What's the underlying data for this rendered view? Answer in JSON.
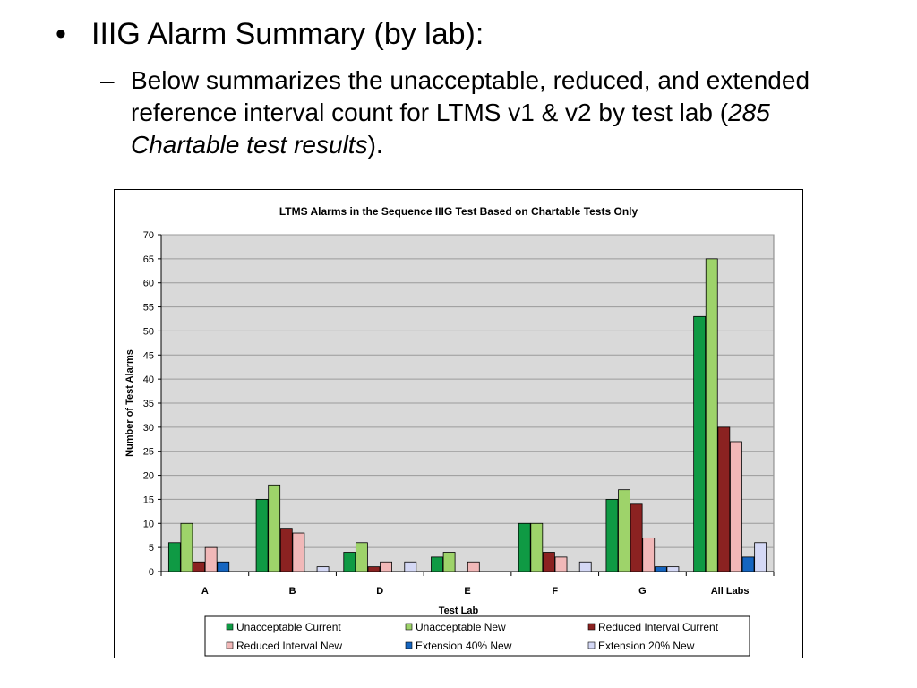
{
  "slide": {
    "bullet_symbol": "•",
    "title": "IIIG Alarm Summary (by lab):",
    "sub_dash": "–",
    "sub_text_before": "Below summarizes the unacceptable, reduced, and extended reference interval count for LTMS v1 & v2 by test lab (",
    "sub_text_italic": "285 Chartable test results",
    "sub_text_after": ")."
  },
  "chart_data": {
    "type": "bar",
    "title": "LTMS Alarms in the Sequence IIIG Test Based on Chartable Tests Only",
    "xlabel": "Test Lab",
    "ylabel": "Number of Test Alarms",
    "ylim": [
      0,
      70
    ],
    "yticks": [
      0,
      5,
      10,
      15,
      20,
      25,
      30,
      35,
      40,
      45,
      50,
      55,
      60,
      65,
      70
    ],
    "grid": true,
    "legend_position": "bottom",
    "categories": [
      "A",
      "B",
      "D",
      "E",
      "F",
      "G",
      "All Labs"
    ],
    "series": [
      {
        "name": "Unacceptable Current",
        "color": "#0f9a44",
        "values": [
          6,
          15,
          4,
          3,
          10,
          15,
          53
        ]
      },
      {
        "name": "Unacceptable New",
        "color": "#9ed36a",
        "values": [
          10,
          18,
          6,
          4,
          10,
          17,
          65
        ]
      },
      {
        "name": "Reduced Interval Current",
        "color": "#8b2221",
        "values": [
          2,
          9,
          1,
          0,
          4,
          14,
          30
        ]
      },
      {
        "name": "Reduced Interval New",
        "color": "#f1b8b8",
        "values": [
          5,
          8,
          2,
          2,
          3,
          7,
          27
        ]
      },
      {
        "name": "Extension 40% New",
        "color": "#1565c0",
        "values": [
          2,
          0,
          0,
          0,
          0,
          1,
          3
        ]
      },
      {
        "name": "Extension 20% New",
        "color": "#d4d8f5",
        "values": [
          0,
          1,
          2,
          0,
          2,
          1,
          6
        ]
      }
    ],
    "colors": {
      "plot_background": "#d9d9d9",
      "gridline": "#9a9a9a"
    }
  }
}
